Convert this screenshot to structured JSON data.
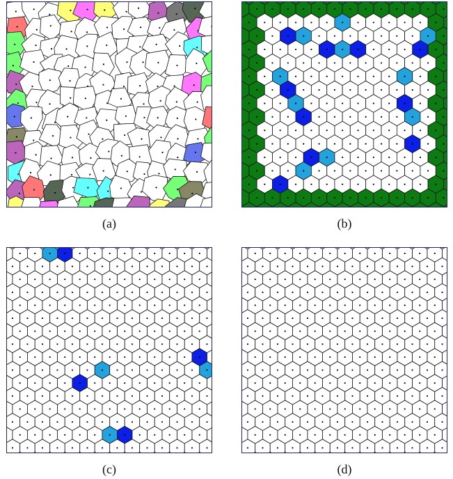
{
  "figure": {
    "captions": {
      "a": "(a)",
      "b": "(b)",
      "c": "(c)",
      "d": "(d)"
    }
  },
  "colors": {
    "panel_a_palette": [
      "#ff77ff",
      "#66ffff",
      "#77ff77",
      "#ff7777",
      "#ffff77",
      "#777777",
      "#6677ee",
      "#bb66bb",
      "#556655",
      "#888866"
    ],
    "frame_green": "#0b7b12",
    "defect_dark_blue": "#0b1fe6",
    "defect_light_blue": "#22a3dd",
    "cell_fill": "#ffffff",
    "edge": "#111111"
  },
  "panels": [
    {
      "id": "a",
      "description": "irregular-voronoi-colored-boundary"
    },
    {
      "id": "b",
      "description": "hex-voronoi-green-frame-with-blue-defects"
    },
    {
      "id": "c",
      "description": "hex-voronoi-few-blue-defects"
    },
    {
      "id": "d",
      "description": "hex-voronoi-no-defects"
    }
  ]
}
